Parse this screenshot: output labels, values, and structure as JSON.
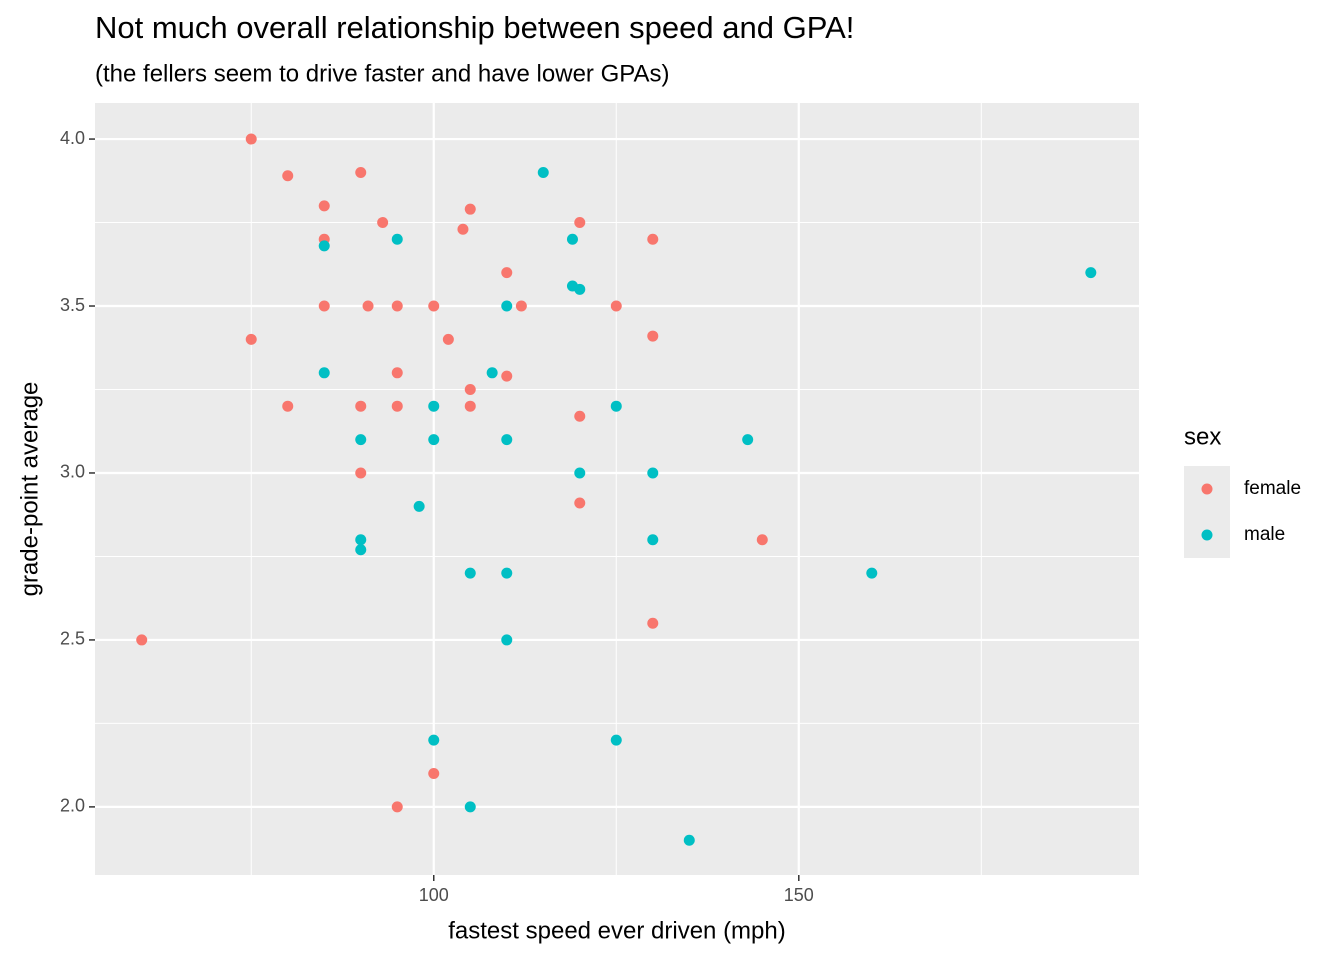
{
  "chart_data": {
    "type": "scatter",
    "title": "Not much overall relationship between speed and GPA!",
    "subtitle": "(the fellers seem to drive faster and have lower GPAs)",
    "x_label": "fastest speed ever driven (mph)",
    "y_label": "grade-point average",
    "legend_title": "sex",
    "legend_position": "right",
    "grid": true,
    "xlim": [
      53.6,
      196.6
    ],
    "ylim": [
      1.796,
      4.108
    ],
    "xticks": [
      100,
      150
    ],
    "yticks": [
      {
        "value": 2.0,
        "label": "2.0"
      },
      {
        "value": 2.5,
        "label": "2.5"
      },
      {
        "value": 3.0,
        "label": "3.0"
      },
      {
        "value": 3.5,
        "label": "3.5"
      },
      {
        "value": 4.0,
        "label": "4.0"
      }
    ],
    "series": [
      {
        "name": "female",
        "color": "#F8766D",
        "x": [
          75,
          80,
          90,
          85,
          93,
          105,
          104,
          120,
          85,
          130,
          110,
          85,
          91,
          95,
          100,
          112,
          125,
          75,
          102,
          130,
          95,
          110,
          105,
          80,
          90,
          95,
          105,
          120,
          90,
          120,
          145,
          130,
          60,
          100,
          95
        ],
        "y": [
          4.0,
          3.89,
          3.9,
          3.8,
          3.75,
          3.79,
          3.73,
          3.75,
          3.7,
          3.7,
          3.6,
          3.5,
          3.5,
          3.5,
          3.5,
          3.5,
          3.5,
          3.4,
          3.4,
          3.41,
          3.3,
          3.29,
          3.25,
          3.2,
          3.2,
          3.2,
          3.2,
          3.17,
          3.0,
          2.91,
          2.8,
          2.55,
          2.5,
          2.1,
          2.0
        ]
      },
      {
        "name": "male",
        "color": "#00BFC4",
        "x": [
          115,
          119,
          95,
          85,
          119,
          120,
          190,
          110,
          85,
          108,
          100,
          125,
          90,
          100,
          110,
          143,
          120,
          130,
          98,
          90,
          90,
          130,
          105,
          110,
          160,
          110,
          100,
          125,
          105,
          135
        ],
        "y": [
          3.9,
          3.7,
          3.7,
          3.68,
          3.56,
          3.55,
          3.6,
          3.5,
          3.3,
          3.3,
          3.2,
          3.2,
          3.1,
          3.1,
          3.1,
          3.1,
          3.0,
          3.0,
          2.9,
          2.8,
          2.77,
          2.8,
          2.7,
          2.7,
          2.7,
          2.5,
          2.2,
          2.2,
          2.0,
          1.9
        ]
      }
    ]
  }
}
